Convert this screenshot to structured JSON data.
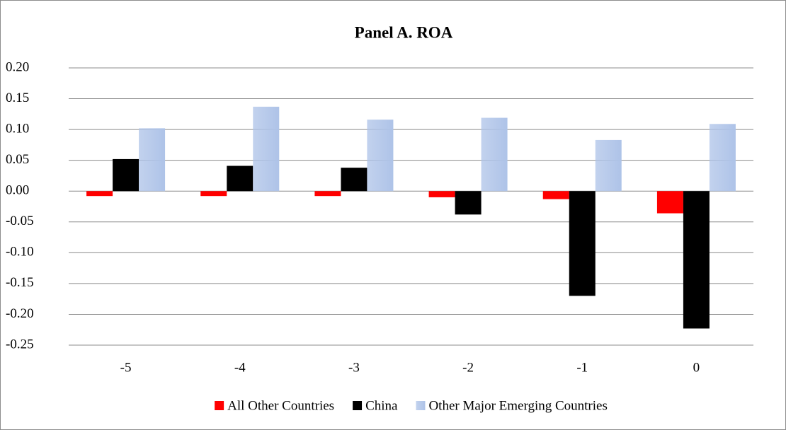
{
  "chart_data": {
    "type": "bar",
    "title": "Panel A. ROA",
    "categories": [
      "-5",
      "-4",
      "-3",
      "-2",
      "-1",
      "0"
    ],
    "series": [
      {
        "name": "All Other Countries",
        "color": "#ff0000",
        "values": [
          -0.008,
          -0.008,
          -0.008,
          -0.01,
          -0.013,
          -0.036
        ]
      },
      {
        "name": "China",
        "color": "#000000",
        "values": [
          0.052,
          0.041,
          0.038,
          -0.038,
          -0.17,
          -0.223
        ]
      },
      {
        "name": "Other Major Emerging Countries",
        "color": "#aec3e8",
        "values": [
          0.102,
          0.137,
          0.116,
          0.119,
          0.083,
          0.109
        ]
      }
    ],
    "ylim": [
      -0.25,
      0.2
    ],
    "yticks": [
      {
        "value": -0.25,
        "label": "-0.25"
      },
      {
        "value": -0.2,
        "label": "-0.20"
      },
      {
        "value": -0.15,
        "label": "-0.15"
      },
      {
        "value": -0.1,
        "label": "-0.10"
      },
      {
        "value": -0.05,
        "label": "-0.05"
      },
      {
        "value": 0,
        "label": "0.00"
      },
      {
        "value": 0.05,
        "label": "0.05"
      },
      {
        "value": 0.1,
        "label": "0.10"
      },
      {
        "value": 0.15,
        "label": "0.15"
      },
      {
        "value": 0.2,
        "label": "0.20"
      }
    ],
    "grid": true,
    "legend": "bottom"
  }
}
